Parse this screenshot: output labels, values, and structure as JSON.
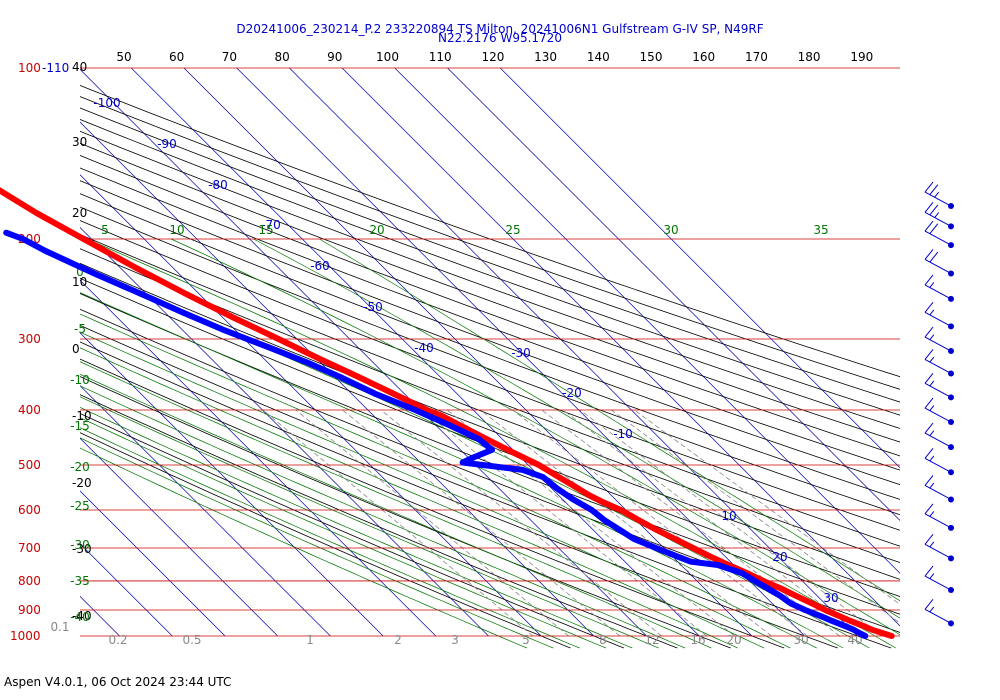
{
  "title": {
    "line1": "D20241006_230214_P.2 233220894 TS Milton, 20241006N1 Gulfstream G-IV SP, N49RF",
    "line2": "N22.2176 W95.1720"
  },
  "footer": "Aspen V4.0.1, 06 Oct 2024  23:44 UTC",
  "colors": {
    "temperature": "#ff0000",
    "dewpoint": "#0000ff",
    "isobar": "#cc0000",
    "isotherm": "#0000aa",
    "dry_adiabat": "#000000",
    "moist_adiabat": "#007700",
    "mixing_ratio": "#888888"
  },
  "chart_data": {
    "type": "line",
    "chart_kind": "skew-T log-P thermodynamic diagram",
    "pressure_ticks_hPa": [
      "100-110",
      "200",
      "300",
      "400",
      "500",
      "600",
      "700",
      "800",
      "900",
      "1000"
    ],
    "height_ticks_kft": [
      "40",
      "30",
      "20",
      "10",
      "0",
      "-10",
      "-20",
      "-30",
      "-40"
    ],
    "theta_labels": [
      "50",
      "60",
      "70",
      "80",
      "90",
      "100",
      "110",
      "120",
      "130",
      "140",
      "150",
      "160",
      "170",
      "180",
      "190"
    ],
    "isotherm_labels": [
      "-100",
      "-90",
      "-80",
      "-70",
      "-60",
      "-50",
      "-40",
      "-30",
      "-20",
      "-10",
      "10",
      "20",
      "30"
    ],
    "moist_labels_top": [
      "5",
      "10",
      "15",
      "20",
      "25",
      "30",
      "35"
    ],
    "moist_labels_left": [
      "0",
      "-5",
      "-10",
      "-15",
      "-20",
      "-25",
      "-30",
      "-35",
      "-40"
    ],
    "mixing_ratio_labels": [
      "0.1",
      "0.2",
      "0.5",
      "1",
      "2",
      "3",
      "5",
      "8",
      "12",
      "16",
      "20",
      "30",
      "40"
    ],
    "series": [
      {
        "name": "Temperature",
        "points_pressure_tempC": [
          [
            1000,
            26.5
          ],
          [
            990,
            25.5
          ],
          [
            975,
            24.0
          ],
          [
            960,
            23.0
          ],
          [
            940,
            21.5
          ],
          [
            925,
            20.5
          ],
          [
            900,
            18.8
          ],
          [
            875,
            17.5
          ],
          [
            850,
            16.0
          ],
          [
            825,
            14.5
          ],
          [
            800,
            12.6
          ],
          [
            775,
            11.0
          ],
          [
            750,
            9.0
          ],
          [
            725,
            7.2
          ],
          [
            700,
            5.5
          ],
          [
            675,
            3.8
          ],
          [
            650,
            2.0
          ],
          [
            625,
            0.5
          ],
          [
            600,
            -1.0
          ],
          [
            580,
            -3.0
          ],
          [
            565,
            -4.2
          ],
          [
            550,
            -5.0
          ],
          [
            525,
            -6.5
          ],
          [
            500,
            -8.0
          ],
          [
            475,
            -10.5
          ],
          [
            450,
            -13.0
          ],
          [
            425,
            -15.5
          ],
          [
            410,
            -17.0
          ],
          [
            400,
            -18.8
          ],
          [
            375,
            -22.0
          ],
          [
            350,
            -25.5
          ],
          [
            325,
            -29.5
          ],
          [
            300,
            -33.5
          ],
          [
            275,
            -38.0
          ],
          [
            250,
            -42.5
          ],
          [
            225,
            -47.0
          ],
          [
            200,
            -51.5
          ],
          [
            180,
            -55.5
          ],
          [
            160,
            -59.0
          ]
        ]
      },
      {
        "name": "Dew Point",
        "points_pressure_tempC": [
          [
            1000,
            21.5
          ],
          [
            990,
            21.0
          ],
          [
            975,
            20.5
          ],
          [
            960,
            19.5
          ],
          [
            940,
            18.0
          ],
          [
            925,
            17.0
          ],
          [
            900,
            15.0
          ],
          [
            875,
            13.5
          ],
          [
            850,
            13.0
          ],
          [
            825,
            12.0
          ],
          [
            800,
            11.0
          ],
          [
            775,
            10.0
          ],
          [
            750,
            7.0
          ],
          [
            740,
            2.5
          ],
          [
            725,
            1.0
          ],
          [
            700,
            -1.5
          ],
          [
            675,
            -4.0
          ],
          [
            650,
            -5.0
          ],
          [
            625,
            -6.0
          ],
          [
            600,
            -6.5
          ],
          [
            575,
            -8.0
          ],
          [
            550,
            -9.0
          ],
          [
            525,
            -9.5
          ],
          [
            510,
            -12.0
          ],
          [
            495,
            -22.0
          ],
          [
            485,
            -19.0
          ],
          [
            470,
            -14.0
          ],
          [
            450,
            -14.5
          ],
          [
            425,
            -17.5
          ],
          [
            400,
            -21.0
          ],
          [
            375,
            -25.5
          ],
          [
            350,
            -29.0
          ],
          [
            330,
            -32.5
          ],
          [
            310,
            -37.0
          ],
          [
            290,
            -42.0
          ],
          [
            270,
            -46.5
          ],
          [
            250,
            -51.0
          ],
          [
            230,
            -56.0
          ],
          [
            210,
            -61.0
          ],
          [
            200,
            -63.0
          ],
          [
            195,
            -65.0
          ]
        ]
      }
    ],
    "wind_barbs_kt": [
      {
        "pressure": 175,
        "speed": 25
      },
      {
        "pressure": 190,
        "speed": 25
      },
      {
        "pressure": 205,
        "speed": 20
      },
      {
        "pressure": 230,
        "speed": 20
      },
      {
        "pressure": 255,
        "speed": 15
      },
      {
        "pressure": 285,
        "speed": 15
      },
      {
        "pressure": 315,
        "speed": 15
      },
      {
        "pressure": 345,
        "speed": 15
      },
      {
        "pressure": 380,
        "speed": 15
      },
      {
        "pressure": 420,
        "speed": 15
      },
      {
        "pressure": 465,
        "speed": 15
      },
      {
        "pressure": 515,
        "speed": 15
      },
      {
        "pressure": 575,
        "speed": 15
      },
      {
        "pressure": 645,
        "speed": 15
      },
      {
        "pressure": 730,
        "speed": 15
      },
      {
        "pressure": 830,
        "speed": 15
      },
      {
        "pressure": 950,
        "speed": 15
      }
    ]
  }
}
